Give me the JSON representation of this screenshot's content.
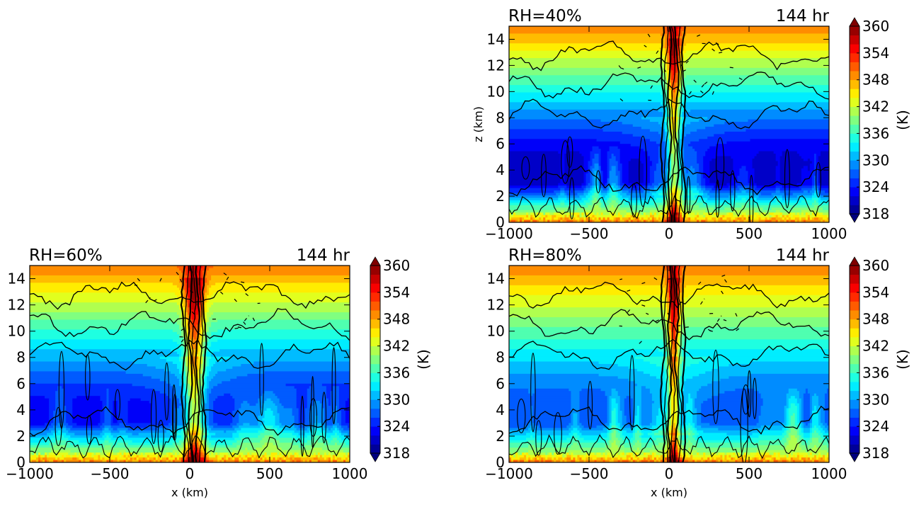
{
  "chart_data": [
    {
      "type": "heatmap",
      "panel": "top-right",
      "title_left": "RH=40%",
      "title_right": "144 hr",
      "xlabel": "",
      "ylabel": "z (km)",
      "xlim": [
        -1000,
        1000
      ],
      "ylim": [
        0,
        15
      ],
      "x_ticks": [
        "−1000",
        "−500",
        "0",
        "500",
        "1000"
      ],
      "y_ticks": [
        "0",
        "2",
        "4",
        "6",
        "8",
        "10",
        "12",
        "14"
      ],
      "colorbar": {
        "label": "(K)",
        "ticks": [
          "318",
          "324",
          "330",
          "336",
          "342",
          "348",
          "354",
          "360"
        ],
        "range": [
          318,
          360
        ]
      },
      "field": "theta_e",
      "contours": "black solid/dashed overlay",
      "mid_min": 320,
      "core_width_km": 40
    },
    {
      "type": "heatmap",
      "panel": "bottom-left",
      "title_left": "RH=60%",
      "title_right": "144 hr",
      "xlabel": "x (km)",
      "ylabel": "",
      "xlim": [
        -1000,
        1000
      ],
      "ylim": [
        0,
        15
      ],
      "x_ticks": [
        "−1000",
        "−500",
        "0",
        "500",
        "1000"
      ],
      "y_ticks": [
        "0",
        "2",
        "4",
        "6",
        "8",
        "10",
        "12",
        "14"
      ],
      "colorbar": {
        "label": "(K)",
        "ticks": [
          "318",
          "324",
          "330",
          "336",
          "342",
          "348",
          "354",
          "360"
        ],
        "range": [
          318,
          360
        ]
      },
      "field": "theta_e",
      "contours": "black solid/dashed overlay",
      "mid_min": 323,
      "core_width_km": 60
    },
    {
      "type": "heatmap",
      "panel": "bottom-right",
      "title_left": "RH=80%",
      "title_right": "144 hr",
      "xlabel": "x (km)",
      "ylabel": "",
      "xlim": [
        -1000,
        1000
      ],
      "ylim": [
        0,
        15
      ],
      "x_ticks": [
        "−1000",
        "−500",
        "0",
        "500",
        "1000"
      ],
      "y_ticks": [
        "0",
        "2",
        "4",
        "6",
        "8",
        "10",
        "12",
        "14"
      ],
      "colorbar": {
        "label": "(K)",
        "ticks": [
          "318",
          "324",
          "330",
          "336",
          "342",
          "348",
          "354",
          "360"
        ],
        "range": [
          318,
          360
        ]
      },
      "field": "theta_e",
      "contours": "black solid/dashed overlay",
      "mid_min": 326,
      "core_width_km": 35
    }
  ]
}
